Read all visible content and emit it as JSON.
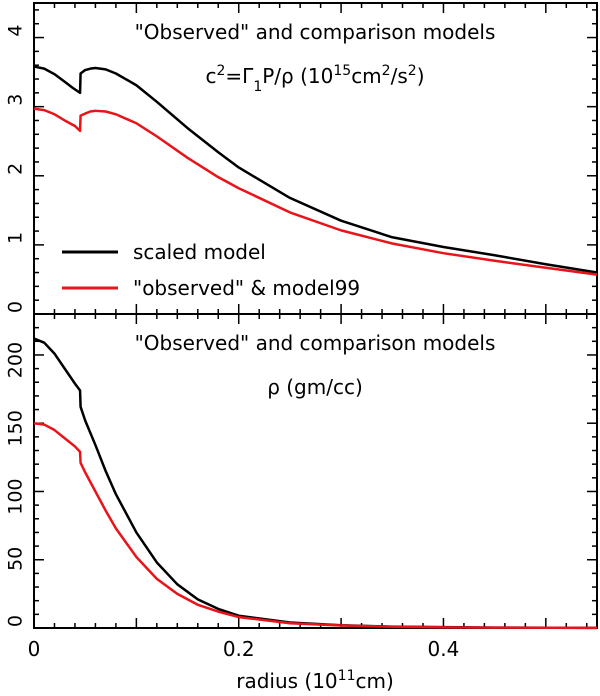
{
  "chart_data": [
    {
      "type": "line",
      "title_line1": "\"Observed\" and comparison models",
      "title_line2_parts": [
        "c",
        "2",
        "=Γ",
        "1",
        "P/ρ  (10",
        "15",
        "cm",
        "2",
        "/s",
        "2",
        ")"
      ],
      "xlim": [
        0,
        0.55
      ],
      "ylim": [
        0,
        4.5
      ],
      "yticks": [
        0,
        1,
        2,
        3,
        4
      ],
      "ytick_labels": [
        "0",
        "1",
        "2",
        "3",
        "4"
      ],
      "legend_placement": "lower-left",
      "series": [
        {
          "name": "scaled model",
          "color": "#000000",
          "points": [
            [
              0,
              3.58
            ],
            [
              0.01,
              3.55
            ],
            [
              0.02,
              3.47
            ],
            [
              0.03,
              3.36
            ],
            [
              0.038,
              3.27
            ],
            [
              0.045,
              3.2
            ],
            [
              0.0455,
              3.48
            ],
            [
              0.05,
              3.53
            ],
            [
              0.055,
              3.55
            ],
            [
              0.06,
              3.56
            ],
            [
              0.07,
              3.54
            ],
            [
              0.08,
              3.48
            ],
            [
              0.1,
              3.31
            ],
            [
              0.12,
              3.07
            ],
            [
              0.15,
              2.69
            ],
            [
              0.18,
              2.34
            ],
            [
              0.2,
              2.12
            ],
            [
              0.25,
              1.68
            ],
            [
              0.3,
              1.35
            ],
            [
              0.35,
              1.11
            ],
            [
              0.4,
              0.97
            ],
            [
              0.45,
              0.85
            ],
            [
              0.5,
              0.72
            ],
            [
              0.55,
              0.6
            ]
          ]
        },
        {
          "name": "\"observed\" & model99",
          "color": "#e8141a",
          "points": [
            [
              0,
              2.97
            ],
            [
              0.01,
              2.95
            ],
            [
              0.02,
              2.89
            ],
            [
              0.03,
              2.8
            ],
            [
              0.04,
              2.72
            ],
            [
              0.045,
              2.65
            ],
            [
              0.0455,
              2.87
            ],
            [
              0.05,
              2.9
            ],
            [
              0.055,
              2.93
            ],
            [
              0.06,
              2.94
            ],
            [
              0.07,
              2.93
            ],
            [
              0.08,
              2.89
            ],
            [
              0.1,
              2.76
            ],
            [
              0.12,
              2.57
            ],
            [
              0.15,
              2.26
            ],
            [
              0.18,
              1.98
            ],
            [
              0.2,
              1.82
            ],
            [
              0.25,
              1.47
            ],
            [
              0.3,
              1.21
            ],
            [
              0.35,
              1.02
            ],
            [
              0.4,
              0.88
            ],
            [
              0.45,
              0.77
            ],
            [
              0.5,
              0.67
            ],
            [
              0.55,
              0.57
            ]
          ]
        }
      ]
    },
    {
      "type": "line",
      "title_line1": "\"Observed\" and comparison models",
      "title_line2": "ρ  (gm/cc)",
      "xlabel_parts": [
        "radius  (10",
        "11",
        "cm)"
      ],
      "xlim": [
        0,
        0.55
      ],
      "ylim": [
        0,
        230
      ],
      "xticks": [
        0,
        0.2,
        0.4
      ],
      "xtick_labels": [
        "0",
        "0.2",
        "0.4"
      ],
      "yticks": [
        0,
        50,
        100,
        150,
        200
      ],
      "ytick_labels": [
        "0",
        "50",
        "100",
        "150",
        "200"
      ],
      "series": [
        {
          "name": "scaled model",
          "color": "#000000",
          "points": [
            [
              0,
              212
            ],
            [
              0.01,
              209
            ],
            [
              0.02,
              201
            ],
            [
              0.03,
              190
            ],
            [
              0.04,
              179
            ],
            [
              0.045,
              174
            ],
            [
              0.0455,
              162
            ],
            [
              0.05,
              152
            ],
            [
              0.06,
              134
            ],
            [
              0.07,
              115
            ],
            [
              0.08,
              98
            ],
            [
              0.1,
              70
            ],
            [
              0.12,
              48
            ],
            [
              0.14,
              32
            ],
            [
              0.16,
              21
            ],
            [
              0.18,
              14
            ],
            [
              0.2,
              9
            ],
            [
              0.25,
              4
            ],
            [
              0.3,
              2
            ],
            [
              0.35,
              1
            ],
            [
              0.4,
              0.6
            ],
            [
              0.45,
              0.3
            ],
            [
              0.55,
              0.1
            ]
          ]
        },
        {
          "name": "\"observed\" & model99",
          "color": "#e8141a",
          "points": [
            [
              0,
              150
            ],
            [
              0.01,
              149
            ],
            [
              0.02,
              145
            ],
            [
              0.03,
              139
            ],
            [
              0.04,
              133
            ],
            [
              0.045,
              129
            ],
            [
              0.0455,
              121
            ],
            [
              0.05,
              114
            ],
            [
              0.06,
              100
            ],
            [
              0.07,
              86
            ],
            [
              0.08,
              73
            ],
            [
              0.1,
              52
            ],
            [
              0.12,
              36
            ],
            [
              0.14,
              25
            ],
            [
              0.16,
              17
            ],
            [
              0.18,
              12
            ],
            [
              0.2,
              8
            ],
            [
              0.25,
              3.5
            ],
            [
              0.3,
              1.8
            ],
            [
              0.35,
              0.9
            ],
            [
              0.4,
              0.5
            ],
            [
              0.45,
              0.3
            ],
            [
              0.55,
              0.1
            ]
          ]
        }
      ]
    }
  ]
}
